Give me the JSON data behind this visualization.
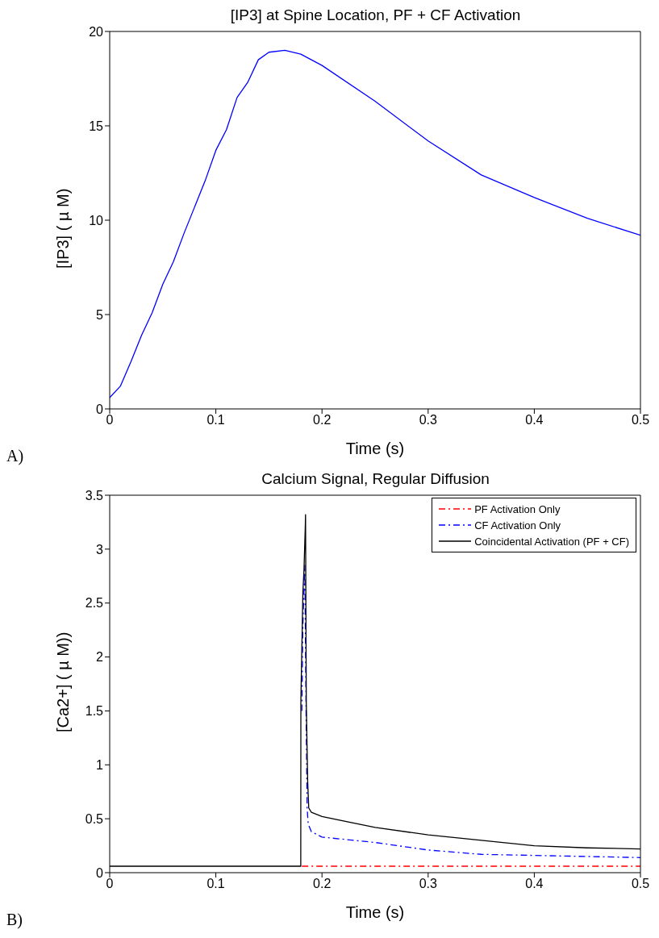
{
  "chart_data": [
    {
      "type": "line",
      "title": "[IP3] at Spine Location, PF + CF Activation",
      "xlabel": "Time (s)",
      "ylabel": "[IP3] ( µ M)",
      "xlim": [
        0,
        0.5
      ],
      "xticks": [
        0,
        0.1,
        0.2,
        0.3,
        0.4,
        0.5
      ],
      "ylim": [
        0,
        20
      ],
      "yticks": [
        0,
        5,
        10,
        15,
        20
      ],
      "grid": false,
      "legend": false,
      "annotations": [
        "A)"
      ],
      "series": [
        {
          "color": "#0000ff",
          "x": [
            0,
            0.01,
            0.02,
            0.03,
            0.04,
            0.05,
            0.06,
            0.07,
            0.08,
            0.09,
            0.1,
            0.11,
            0.12,
            0.13,
            0.14,
            0.15,
            0.165,
            0.18,
            0.2,
            0.25,
            0.3,
            0.35,
            0.4,
            0.45,
            0.5
          ],
          "values": [
            0.6,
            1.2,
            2.5,
            3.9,
            5.1,
            6.6,
            7.8,
            9.3,
            10.7,
            12.1,
            13.7,
            14.8,
            16.5,
            17.3,
            18.5,
            18.9,
            19.0,
            18.8,
            18.2,
            16.3,
            14.2,
            12.4,
            11.2,
            10.1,
            9.2
          ]
        }
      ]
    },
    {
      "type": "line",
      "title": "Calcium Signal, Regular Diffusion",
      "xlabel": "Time (s)",
      "ylabel": "[Ca2+] ( µ M))",
      "xlim": [
        0,
        0.5
      ],
      "xticks": [
        0,
        0.1,
        0.2,
        0.3,
        0.4,
        0.5
      ],
      "ylim": [
        0,
        3.5
      ],
      "yticks": [
        0,
        0.5,
        1,
        1.5,
        2,
        2.5,
        3,
        3.5
      ],
      "grid": false,
      "legend": "top right",
      "annotations": [
        "B)"
      ],
      "series": [
        {
          "name": "PF Activation Only",
          "color": "#ff0000",
          "line_style": "dashed",
          "x": [
            0.181,
            0.5
          ],
          "values": [
            0.06,
            0.06
          ]
        },
        {
          "name": "CF Activation Only",
          "color": "#0000ff",
          "line_style": "dashed",
          "x": [
            0.181,
            0.182,
            0.1838,
            0.185,
            0.186,
            0.187,
            0.19,
            0.2,
            0.25,
            0.3,
            0.35,
            0.4,
            0.45,
            0.5
          ],
          "values": [
            1.5,
            2.3,
            2.85,
            1.5,
            0.6,
            0.45,
            0.38,
            0.33,
            0.28,
            0.21,
            0.17,
            0.16,
            0.15,
            0.14
          ]
        },
        {
          "name": "Coincidental Activation (PF + CF)",
          "color": "#000000",
          "line_style": "solid",
          "x": [
            0,
            0.18,
            0.1801,
            0.182,
            0.183,
            0.1842,
            0.1845,
            0.1852,
            0.1865,
            0.1875,
            0.19,
            0.2,
            0.25,
            0.3,
            0.35,
            0.4,
            0.45,
            0.5
          ],
          "values": [
            0.06,
            0.06,
            1.6,
            2.6,
            2.8,
            3.19,
            3.32,
            1.57,
            0.85,
            0.6,
            0.56,
            0.52,
            0.42,
            0.35,
            0.3,
            0.25,
            0.23,
            0.22
          ]
        }
      ]
    }
  ]
}
